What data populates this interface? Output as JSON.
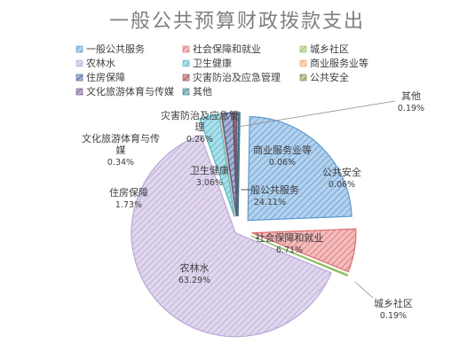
{
  "chart_data": {
    "type": "pie",
    "title": "一般公共预算财政拨款支出",
    "legend_position": "top",
    "exploded": true,
    "slices": [
      {
        "label": "一般公共服务",
        "value": 24.11,
        "value_label": "24.11%",
        "color": "#5b9bd5",
        "pattern": "hatch-blue"
      },
      {
        "label": "社会保障和就业",
        "value": 6.71,
        "value_label": "6.71%",
        "color": "#e06c6c",
        "pattern": "hatch-red"
      },
      {
        "label": "城乡社区",
        "value": 0.19,
        "value_label": "0.19%",
        "color": "#8cbf5a",
        "pattern": "hatch-green"
      },
      {
        "label": "农林水",
        "value": 63.29,
        "value_label": "63.29%",
        "color": "#b9a7d8",
        "pattern": "hatch-purple"
      },
      {
        "label": "卫生健康",
        "value": 3.06,
        "value_label": "3.06%",
        "color": "#4bb8cc",
        "pattern": "hatch-cyan"
      },
      {
        "label": "商业服务业等",
        "value": 0.06,
        "value_label": "0.06%",
        "color": "#f4a460",
        "pattern": "hatch-orange"
      },
      {
        "label": "住房保障",
        "value": 1.73,
        "value_label": "1.73%",
        "color": "#3b5a9a",
        "pattern": "hatch-navy"
      },
      {
        "label": "灾害防治及应急管理",
        "value": 0.26,
        "value_label": "0.26%",
        "color": "#9e3b3b",
        "pattern": "hatch-darkred"
      },
      {
        "label": "公共安全",
        "value": 0.06,
        "value_label": "0.06%",
        "color": "#6f8f3a",
        "pattern": "hatch-olive"
      },
      {
        "label": "文化旅游体育与传媒",
        "value": 0.34,
        "value_label": "0.34%",
        "color": "#6b4f8a",
        "pattern": "hatch-violet"
      },
      {
        "label": "其他",
        "value": 0.19,
        "value_label": "0.19%",
        "color": "#2e7f8c",
        "pattern": "hatch-teal"
      }
    ]
  }
}
